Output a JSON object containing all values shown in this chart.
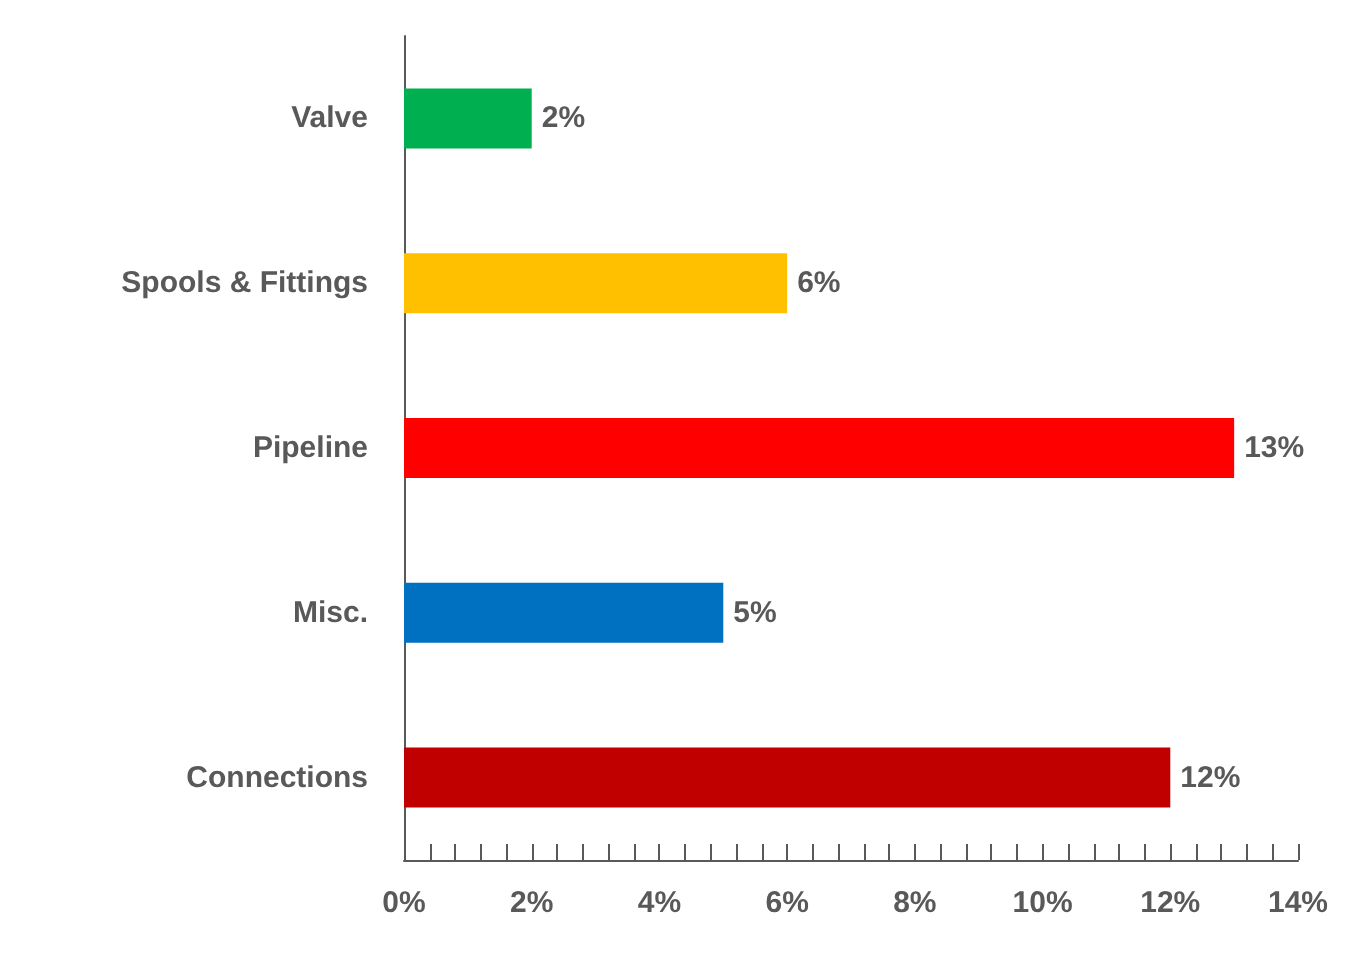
{
  "chart_data": {
    "type": "bar",
    "orientation": "horizontal",
    "categories": [
      "Valve",
      "Spools & Fittings",
      "Pipeline",
      "Misc.",
      "Connections"
    ],
    "values": [
      2,
      6,
      13,
      5,
      12
    ],
    "colors": [
      "#00b050",
      "#ffc000",
      "#ff0000",
      "#0070c0",
      "#c00000"
    ],
    "value_labels": [
      "2%",
      "6%",
      "13%",
      "5%",
      "12%"
    ],
    "xlim": [
      0,
      14
    ],
    "xticks": [
      {
        "value": 0,
        "label": "0%"
      },
      {
        "value": 0.4,
        "label": null
      },
      {
        "value": 0.8,
        "label": null
      },
      {
        "value": 1.2,
        "label": null
      },
      {
        "value": 1.6,
        "label": null
      },
      {
        "value": 2,
        "label": "2%"
      },
      {
        "value": 2.4,
        "label": null
      },
      {
        "value": 2.8,
        "label": null
      },
      {
        "value": 3.2,
        "label": null
      },
      {
        "value": 3.6,
        "label": null
      },
      {
        "value": 4,
        "label": "4%"
      },
      {
        "value": 4.4,
        "label": null
      },
      {
        "value": 4.8,
        "label": null
      },
      {
        "value": 5.2,
        "label": null
      },
      {
        "value": 5.6,
        "label": null
      },
      {
        "value": 6,
        "label": "6%"
      },
      {
        "value": 6.4,
        "label": null
      },
      {
        "value": 6.8,
        "label": null
      },
      {
        "value": 7.2,
        "label": null
      },
      {
        "value": 7.6,
        "label": null
      },
      {
        "value": 8,
        "label": "8%"
      },
      {
        "value": 8.4,
        "label": null
      },
      {
        "value": 8.8,
        "label": null
      },
      {
        "value": 9.2,
        "label": null
      },
      {
        "value": 9.6,
        "label": null
      },
      {
        "value": 10,
        "label": "10%"
      },
      {
        "value": 10.4,
        "label": null
      },
      {
        "value": 10.8,
        "label": null
      },
      {
        "value": 11.2,
        "label": null
      },
      {
        "value": 11.6,
        "label": null
      },
      {
        "value": 12,
        "label": "12%"
      },
      {
        "value": 12.4,
        "label": null
      },
      {
        "value": 12.8,
        "label": null
      },
      {
        "value": 13.2,
        "label": null
      },
      {
        "value": 13.6,
        "label": null
      },
      {
        "value": 14,
        "label": "14%"
      }
    ]
  }
}
